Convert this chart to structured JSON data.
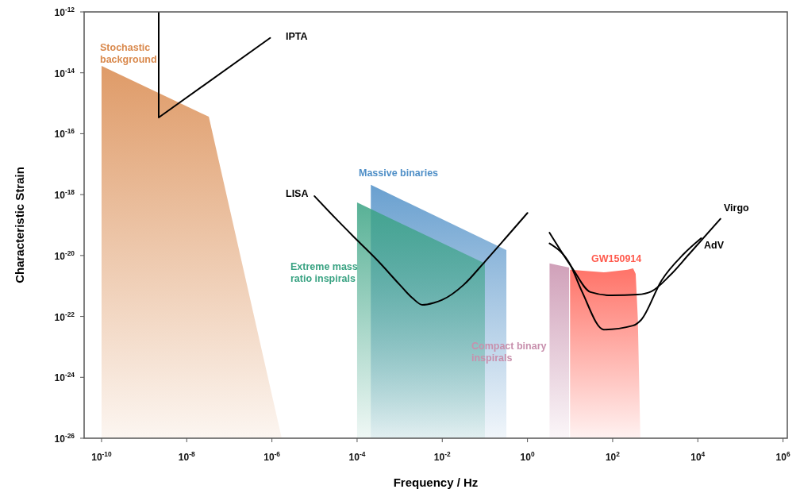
{
  "chart_data": {
    "type": "line",
    "xlabel": "Frequency / Hz",
    "ylabel": "Characteristic Strain",
    "log": "xy",
    "grid": false,
    "legend": false,
    "xlim": [
      3.9e-11,
      1260000.0
    ],
    "ylim": [
      1e-26,
      1e-12
    ],
    "xticks": [
      {
        "value": 1e-10,
        "label": "10$^{-10}$"
      },
      {
        "value": 1e-08,
        "label": "10$^{-8}$"
      },
      {
        "value": 1e-06,
        "label": "10$^{-6}$"
      },
      {
        "value": 0.0001,
        "label": "10$^{-4}$"
      },
      {
        "value": 0.01,
        "label": "10$^{-2}$"
      },
      {
        "value": 1,
        "label": "10$^{0}$"
      },
      {
        "value": 100,
        "label": "10$^{2}$"
      },
      {
        "value": 10000.0,
        "label": "10$^{4}$"
      },
      {
        "value": 1000000.0,
        "label": "10$^{6}$"
      }
    ],
    "yticks": [
      {
        "value": 1e-12,
        "label": "10$^{-12}$"
      },
      {
        "value": 1e-14,
        "label": "10$^{-14}$"
      },
      {
        "value": 1e-16,
        "label": "10$^{-16}$"
      },
      {
        "value": 1e-18,
        "label": "10$^{-18}$"
      },
      {
        "value": 1e-20,
        "label": "10$^{-20}$"
      },
      {
        "value": 1e-22,
        "label": "10$^{-22}$"
      },
      {
        "value": 1e-24,
        "label": "10$^{-24}$"
      },
      {
        "value": 1e-26,
        "label": "10$^{-26}$"
      }
    ],
    "series": [
      {
        "name": "Stochastic\nbackground",
        "type": "area",
        "color": "#d9894d",
        "x": [
          1e-10,
          3.3e-08,
          1.7e-06
        ],
        "values": [
          1.7e-14,
          3.6e-16,
          1e-26
        ]
      },
      {
        "name": "Massive binaries",
        "type": "area",
        "color": "#4f8fc7",
        "x": [
          0.00021,
          0.32
        ],
        "values": [
          2.1e-18,
          1.5e-20
        ]
      },
      {
        "name": "Extreme mass\nratio inspirals",
        "type": "area",
        "color": "#3aa383",
        "x": [
          0.0001,
          0.1
        ],
        "values": [
          5.5e-19,
          5.5e-21
        ]
      },
      {
        "name": "Compact binary\ninspirals",
        "type": "area",
        "color": "#c890ad",
        "x": [
          3.3,
          9.5
        ],
        "values": [
          5.5e-21,
          4e-21
        ]
      },
      {
        "name": "GW150914",
        "type": "area",
        "color": "#ff5a4d",
        "x": [
          10,
          62,
          224,
          302,
          347,
          389,
          447
        ],
        "values": [
          3.4e-21,
          2.8e-21,
          3.4e-21,
          3.8e-21,
          2.5e-21,
          9.1e-23,
          1e-26
        ]
      },
      {
        "name": "IPTA",
        "color": "#000000",
        "x": [
          2.2e-09,
          2.2e-09,
          9.1e-07
        ],
        "values": [
          1e-12,
          3.4e-16,
          1.4e-13
        ]
      },
      {
        "name": "LISA",
        "color": "#000000",
        "x": [
          1e-05,
          3.2e-05,
          0.0001,
          0.00032,
          0.001,
          0.002,
          0.0034,
          0.0063,
          0.01,
          0.032,
          0.1,
          0.32,
          1
        ],
        "values": [
          8.9e-19,
          1.6e-19,
          3.2e-20,
          6.3e-21,
          1.1e-21,
          4e-22,
          2.4e-22,
          2.8e-22,
          3.5e-22,
          1.1e-21,
          6.3e-21,
          4e-20,
          2.5e-19
        ]
      },
      {
        "name": "Virgo",
        "color": "#000000",
        "x": [
          3.3,
          11,
          30,
          95,
          390,
          810,
          2200,
          6200,
          34000
        ],
        "values": [
          5.6e-20,
          4.1e-21,
          6.3e-22,
          4.9e-22,
          5.2e-22,
          6.6e-22,
          2.2e-21,
          1.1e-20,
          1.6e-19
        ]
      },
      {
        "name": "AdV",
        "color": "#000000",
        "x": [
          3.3,
          10,
          19,
          62,
          300,
          470,
          1400,
          4600,
          12000
        ],
        "values": [
          2.5e-20,
          5.1e-21,
          6.6e-22,
          3.7e-23,
          5e-23,
          7.8e-23,
          1.5e-21,
          1.1e-20,
          3.7e-20
        ]
      }
    ]
  }
}
